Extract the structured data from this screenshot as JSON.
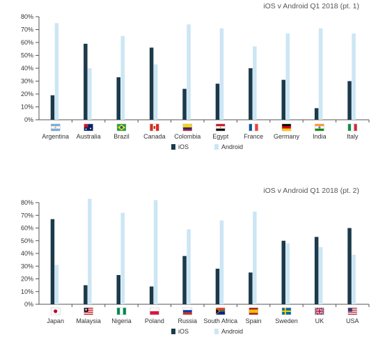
{
  "colors": {
    "ios": "#1b3a4b",
    "android": "#cce6f4",
    "axis": "#555555",
    "grid": "#cfcfcf",
    "text": "#333333"
  },
  "chart_data": [
    {
      "type": "bar",
      "title": "iOS v Android Q1 2018  (pt. 1)",
      "ylim": [
        0,
        80
      ],
      "yticks": [
        "0%",
        "10%",
        "20%",
        "30%",
        "40%",
        "50%",
        "60%",
        "70%",
        "80%"
      ],
      "categories": [
        "Argentina",
        "Australia",
        "Brazil",
        "Canada",
        "Colombia",
        "Egypt",
        "France",
        "Germany",
        "India",
        "Italy"
      ],
      "flag_icons": [
        "argentina-flag-icon",
        "australia-flag-icon",
        "brazil-flag-icon",
        "canada-flag-icon",
        "colombia-flag-icon",
        "egypt-flag-icon",
        "france-flag-icon",
        "germany-flag-icon",
        "india-flag-icon",
        "italy-flag-icon"
      ],
      "series": [
        {
          "name": "iOS",
          "values": [
            19,
            59,
            33,
            56,
            24,
            28,
            40,
            31,
            9,
            30
          ]
        },
        {
          "name": "Android",
          "values": [
            75,
            40,
            65,
            43,
            74,
            71,
            57,
            67,
            71,
            67
          ]
        }
      ],
      "grid": false,
      "legend": "bottom-center"
    },
    {
      "type": "bar",
      "title": "iOS v Android Q1 2018 (pt. 2)",
      "ylim": [
        0,
        80
      ],
      "yticks": [
        "0%",
        "10%",
        "20%",
        "30%",
        "40%",
        "50%",
        "60%",
        "70%",
        "80%"
      ],
      "categories": [
        "Japan",
        "Malaysia",
        "Nigeria",
        "Poland",
        "Russia",
        "South Africa",
        "Spain",
        "Sweden",
        "UK",
        "USA"
      ],
      "flag_icons": [
        "japan-flag-icon",
        "malaysia-flag-icon",
        "nigeria-flag-icon",
        "poland-flag-icon",
        "russia-flag-icon",
        "south-africa-flag-icon",
        "spain-flag-icon",
        "sweden-flag-icon",
        "uk-flag-icon",
        "usa-flag-icon"
      ],
      "series": [
        {
          "name": "iOS",
          "values": [
            67,
            15,
            23,
            14,
            38,
            28,
            25,
            50,
            53,
            60
          ]
        },
        {
          "name": "Android",
          "values": [
            31,
            83,
            72,
            82,
            59,
            66,
            73,
            48,
            45,
            39
          ]
        }
      ],
      "grid": false,
      "legend": "bottom-center"
    }
  ]
}
